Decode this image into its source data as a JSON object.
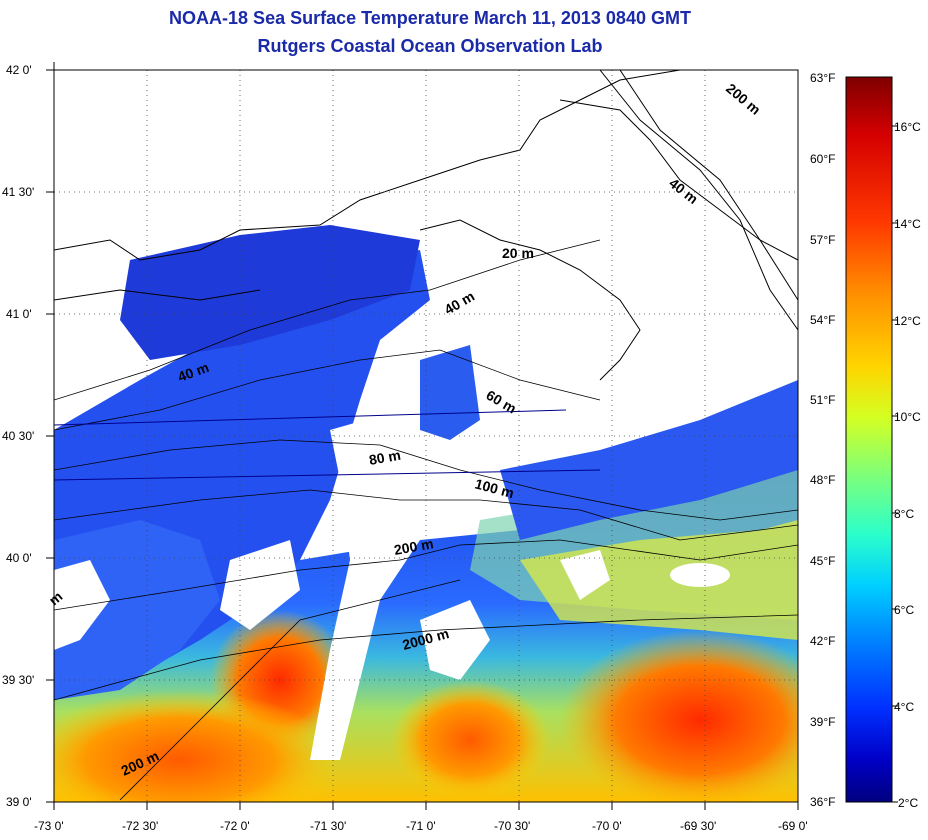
{
  "header": {
    "title": "NOAA-18 Sea Surface Temperature March 11, 2013 0840 GMT",
    "subtitle": "Rutgers Coastal Ocean Observation Lab"
  },
  "axes": {
    "lat_labels": [
      "42 0'",
      "41 30'",
      "41 0'",
      "40 30'",
      "40 0'",
      "39 30'",
      "39 0'"
    ],
    "lon_labels": [
      "-73 0'",
      "-72 30'",
      "-72 0'",
      "-71 30'",
      "-71 0'",
      "-70 30'",
      "-70 0'",
      "-69 30'",
      "-69 0'"
    ],
    "fahrenheit_labels": [
      "63°F",
      "60°F",
      "57°F",
      "54°F",
      "51°F",
      "48°F",
      "45°F",
      "42°F",
      "39°F",
      "36°F"
    ]
  },
  "contours": [
    "200 m",
    "40 m",
    "20 m",
    "40 m",
    "40 m",
    "60 m",
    "80 m",
    "100 m",
    "200 m",
    "2000 m",
    "200 m",
    "m"
  ],
  "colorbar": {
    "celsius_labels": [
      "16°C",
      "14°C",
      "12°C",
      "10°C",
      "8°C",
      "6°C",
      "4°C",
      "2°C"
    ],
    "colors": [
      "#7f0000",
      "#d40000",
      "#ff3800",
      "#ff9000",
      "#ffd500",
      "#d4ff22",
      "#7dff7a",
      "#2cffca",
      "#00d0ff",
      "#0080ff",
      "#0030ff",
      "#0000c8",
      "#00007f"
    ]
  }
}
